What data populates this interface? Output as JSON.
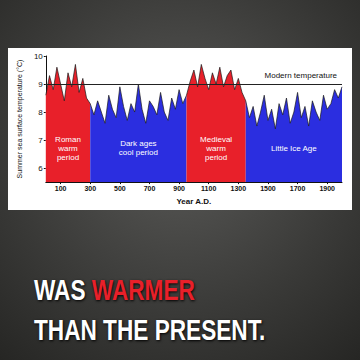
{
  "chart_data": {
    "type": "line",
    "y_label": "Summer sea surface temperature (°C)",
    "x_label": "Year A.D.",
    "xlim": [
      0,
      2000
    ],
    "xticks": [
      100,
      300,
      500,
      700,
      900,
      1100,
      1300,
      1500,
      1700,
      1900
    ],
    "ylim": [
      5.5,
      10
    ],
    "yticks": [
      6,
      7,
      8,
      9,
      10
    ],
    "grid": false,
    "series": [
      {
        "name": "Roman\nwarm\nperiod",
        "color": "#e8202a",
        "x": [
          0,
          25,
          50,
          75,
          100,
          125,
          150,
          175,
          200,
          225,
          250,
          275,
          300
        ],
        "values": [
          8.6,
          9.3,
          8.8,
          9.6,
          9.0,
          8.4,
          9.4,
          8.9,
          9.7,
          8.7,
          9.2,
          8.5,
          8.3
        ]
      },
      {
        "name": "Dark ages\ncool period",
        "color": "#2b2ee0",
        "x": [
          300,
          325,
          350,
          375,
          400,
          425,
          450,
          475,
          500,
          525,
          550,
          575,
          600,
          625,
          650,
          675,
          700,
          725,
          750,
          775,
          800,
          825,
          850,
          875,
          900,
          925,
          950
        ],
        "values": [
          8.3,
          7.9,
          8.4,
          8.0,
          7.6,
          8.6,
          8.1,
          7.8,
          8.9,
          8.2,
          7.7,
          8.3,
          8.0,
          9.0,
          8.1,
          7.6,
          8.4,
          8.2,
          7.9,
          8.7,
          8.0,
          7.7,
          8.5,
          8.1,
          8.8,
          8.3,
          8.6
        ]
      },
      {
        "name": "Medieval\nwarm\nperiod",
        "color": "#e8202a",
        "x": [
          950,
          975,
          1000,
          1025,
          1050,
          1075,
          1100,
          1125,
          1150,
          1175,
          1200,
          1225,
          1250,
          1275,
          1300,
          1325,
          1350
        ],
        "values": [
          8.6,
          9.1,
          9.5,
          8.9,
          9.7,
          9.2,
          8.8,
          9.4,
          9.0,
          9.6,
          8.9,
          9.3,
          9.5,
          8.8,
          9.2,
          8.7,
          8.4
        ]
      },
      {
        "name": "Little Ice Age",
        "color": "#2b2ee0",
        "x": [
          1350,
          1375,
          1400,
          1425,
          1450,
          1475,
          1500,
          1525,
          1550,
          1575,
          1600,
          1625,
          1650,
          1675,
          1700,
          1725,
          1750,
          1775,
          1800,
          1825,
          1850,
          1875,
          1900,
          1925,
          1950,
          1975,
          2000
        ],
        "values": [
          8.4,
          7.8,
          8.2,
          7.5,
          8.0,
          8.6,
          7.7,
          8.1,
          7.4,
          8.3,
          7.9,
          8.5,
          7.6,
          8.0,
          8.7,
          7.8,
          8.2,
          7.5,
          8.4,
          8.0,
          7.7,
          8.6,
          8.1,
          8.3,
          8.8,
          8.5,
          8.9
        ]
      }
    ],
    "reference_lines": [
      {
        "label": "Modern temperature",
        "value": 9
      }
    ],
    "caption": [
      [
        {
          "text": "WAS ",
          "color": "#ffffff"
        },
        {
          "text": "WARMER",
          "color": "#e8202a"
        }
      ],
      [
        {
          "text": "THAN THE PRESENT.",
          "color": "#ffffff"
        }
      ]
    ]
  }
}
